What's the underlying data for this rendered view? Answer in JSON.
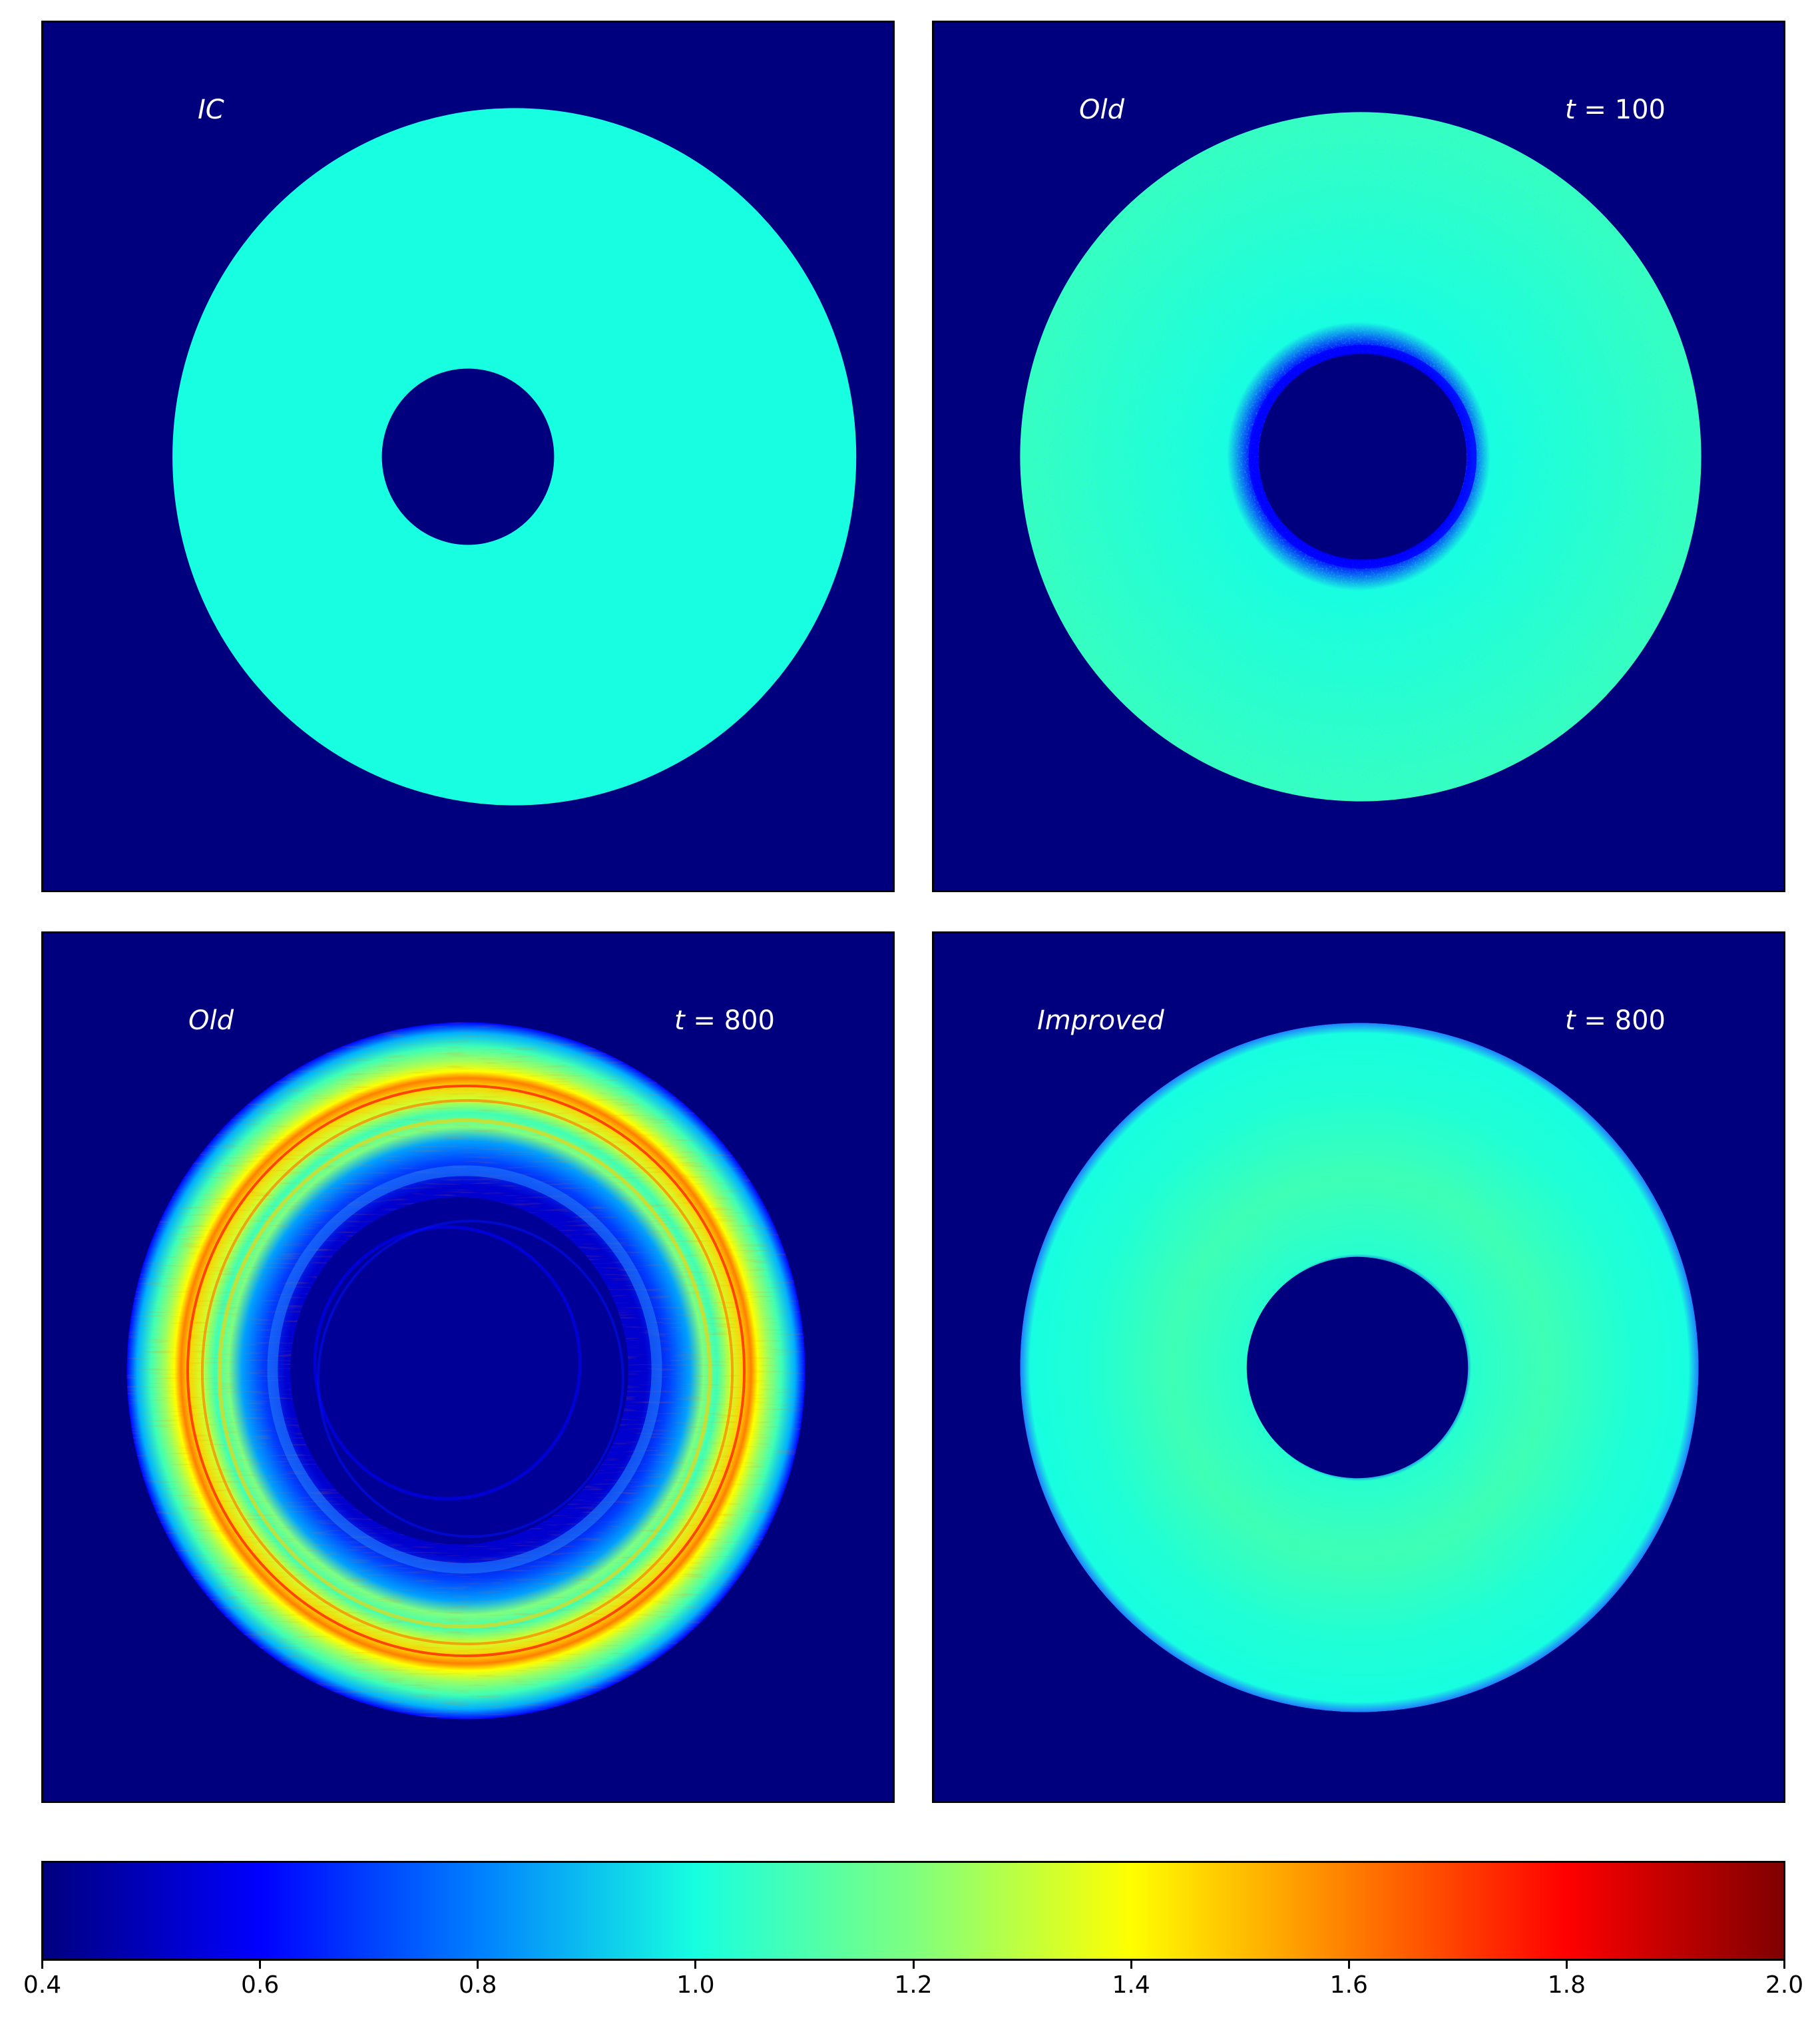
{
  "chart_data": {
    "type": "heatmap",
    "colormap": "jet",
    "colorbar": {
      "orientation": "horizontal",
      "min": 0.4,
      "max": 2.0,
      "ticks": [
        "0.4",
        "0.6",
        "0.8",
        "1.0",
        "1.2",
        "1.4",
        "1.6",
        "1.8",
        "2.0"
      ],
      "colors": [
        "#00007f",
        "#0000ff",
        "#007fff",
        "#17ffe0",
        "#7fff7f",
        "#ffff00",
        "#ff7f00",
        "#ff0000",
        "#7f0000"
      ]
    },
    "background_value": 0.4,
    "panels": [
      {
        "id": "ic",
        "label": "IC",
        "time": "",
        "disk_value": 1.0,
        "inner_radius_fraction": 0.25,
        "pattern": "uniform annulus"
      },
      {
        "id": "old-100",
        "label": "Old",
        "time": "100",
        "disk_value": 1.0,
        "inner_radius_fraction": 0.29,
        "pattern": "noisy annulus"
      },
      {
        "id": "old-800",
        "label": "Old",
        "time": "800",
        "disk_value": 1.35,
        "inner_radius_fraction": 0.55,
        "pattern": "rings up to ~1.8 with depleted center"
      },
      {
        "id": "improved-800",
        "label": "Improved",
        "time": "800",
        "disk_value": 1.02,
        "inner_radius_fraction": 0.32,
        "pattern": "smooth annulus"
      }
    ]
  }
}
